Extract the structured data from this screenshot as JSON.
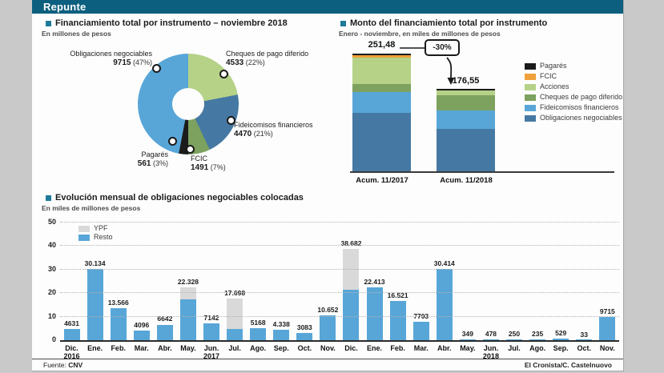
{
  "page": {
    "masthead": "Repunte",
    "footer": {
      "source_prefix": "Fuente:",
      "source": "CNV",
      "credit": "El Cronista/C. Castelnuovo"
    }
  },
  "chart_data": [
    {
      "type": "pie",
      "title": "Financiamiento total por instrumento – noviembre 2018",
      "subtitle": "En millones de pesos",
      "note": "donut, segments drawn clockwise from 12 o'clock",
      "segments": [
        {
          "label": "Cheques de pago diferido",
          "value": 4533,
          "pct": 22,
          "value_label": "4533",
          "pct_label": "(22%)",
          "color": "#b5d287"
        },
        {
          "label": "Fideicomisos financieros",
          "value": 4470,
          "pct": 21,
          "value_label": "4470",
          "pct_label": "(21%)",
          "color": "#4579a3"
        },
        {
          "label": "FCIC",
          "value": 1491,
          "pct": 7,
          "value_label": "1491",
          "pct_label": "(7%)",
          "color": "#7da15e"
        },
        {
          "label": "Pagarés",
          "value": 561,
          "pct": 3,
          "value_label": "561",
          "pct_label": "(3%)",
          "color": "#1b1b1b"
        },
        {
          "label": "Obligaciones negociables",
          "value": 9715,
          "pct": 47,
          "value_label": "9715",
          "pct_label": "(47%)",
          "color": "#58a6d8"
        }
      ]
    },
    {
      "type": "bar",
      "subtype": "stacked",
      "title": "Monto del financiamiento total por instrumento",
      "subtitle": "Enero - noviembre, en miles de millones de pesos",
      "categories": [
        "Acum. 11/2017",
        "Acum. 11/2018"
      ],
      "totals": [
        251.48,
        176.55
      ],
      "total_labels": [
        "251,48",
        "176,55"
      ],
      "change_label": "-30%",
      "series_bottom_up": [
        {
          "name": "Obligaciones negociables",
          "color": "#4579a3",
          "values": [
            125.0,
            90.0
          ]
        },
        {
          "name": "Fideicomisos financieros",
          "color": "#58a6d8",
          "values": [
            44.5,
            40.0
          ]
        },
        {
          "name": "Cheques de pago diferido",
          "color": "#7da15e",
          "values": [
            17.0,
            33.0
          ]
        },
        {
          "name": "Acciones",
          "color": "#b5d287",
          "values": [
            57.0,
            10.5
          ]
        },
        {
          "name": "FCIC",
          "color": "#efa13b",
          "values": [
            4.5,
            0
          ]
        },
        {
          "name": "Pagarés",
          "color": "#1b1b1b",
          "values": [
            3.48,
            3.05
          ]
        }
      ],
      "legend_top_to_bottom": [
        "Pagarés",
        "FCIC",
        "Acciones",
        "Cheques de pago diferido",
        "Fideicomisos financieros",
        "Obligaciones negociables"
      ]
    },
    {
      "type": "bar",
      "subtype": "stacked-two-series",
      "title": "Evolución mensual de obligaciones negociables colocadas",
      "subtitle": "En miles de millones de pesos",
      "ylim": [
        0,
        50
      ],
      "yticks": [
        0,
        10,
        20,
        30,
        40,
        50
      ],
      "grid": "dotted horizontal",
      "legend": [
        {
          "name": "YPF",
          "color": "#d9d9d9"
        },
        {
          "name": "Resto",
          "color": "#58a6d8"
        }
      ],
      "bars": [
        {
          "month": "Dic.",
          "year": "2016",
          "label": "4631",
          "resto": 4.631,
          "ypf": 0
        },
        {
          "month": "Ene.",
          "label": "30.134",
          "resto": 30.134,
          "ypf": 0
        },
        {
          "month": "Feb.",
          "label": "13.566",
          "resto": 13.566,
          "ypf": 0
        },
        {
          "month": "Mar.",
          "label": "4096",
          "resto": 4.096,
          "ypf": 0
        },
        {
          "month": "Abr.",
          "label": "6642",
          "resto": 6.642,
          "ypf": 0
        },
        {
          "month": "May.",
          "label": "22.328",
          "resto": 17.3,
          "ypf": 5.028
        },
        {
          "month": "Jun.",
          "year": "2017",
          "label": "7142",
          "resto": 7.142,
          "ypf": 0
        },
        {
          "month": "Jul.",
          "label": "17.698",
          "resto": 4.9,
          "ypf": 12.798
        },
        {
          "month": "Ago.",
          "label": "5168",
          "resto": 5.168,
          "ypf": 0
        },
        {
          "month": "Sep.",
          "label": "4.338",
          "resto": 4.338,
          "ypf": 0
        },
        {
          "month": "Oct.",
          "label": "3083",
          "resto": 3.083,
          "ypf": 0
        },
        {
          "month": "Nov.",
          "label": "10.652",
          "resto": 10.652,
          "ypf": 0
        },
        {
          "month": "Dic.",
          "label": "38.682",
          "resto": 21.3,
          "ypf": 17.382
        },
        {
          "month": "Ene.",
          "label": "22.413",
          "resto": 22.413,
          "ypf": 0
        },
        {
          "month": "Feb.",
          "label": "16.521",
          "resto": 16.521,
          "ypf": 0
        },
        {
          "month": "Mar.",
          "label": "7703",
          "resto": 7.703,
          "ypf": 0
        },
        {
          "month": "Abr.",
          "label": "30.414",
          "resto": 30.414,
          "ypf": 0
        },
        {
          "month": "May.",
          "label": "349",
          "resto": 0.349,
          "ypf": 0
        },
        {
          "month": "Jun.",
          "year": "2018",
          "label": "478",
          "resto": 0.478,
          "ypf": 0
        },
        {
          "month": "Jul.",
          "label": "250",
          "resto": 0.25,
          "ypf": 0
        },
        {
          "month": "Ago.",
          "label": "235",
          "resto": 0.235,
          "ypf": 0
        },
        {
          "month": "Sep.",
          "label": "529",
          "resto": 0.529,
          "ypf": 0
        },
        {
          "month": "Oct.",
          "label": "33",
          "resto": 0.033,
          "ypf": 0
        },
        {
          "month": "Nov.",
          "label": "9715",
          "resto": 9.715,
          "ypf": 0
        }
      ]
    }
  ]
}
